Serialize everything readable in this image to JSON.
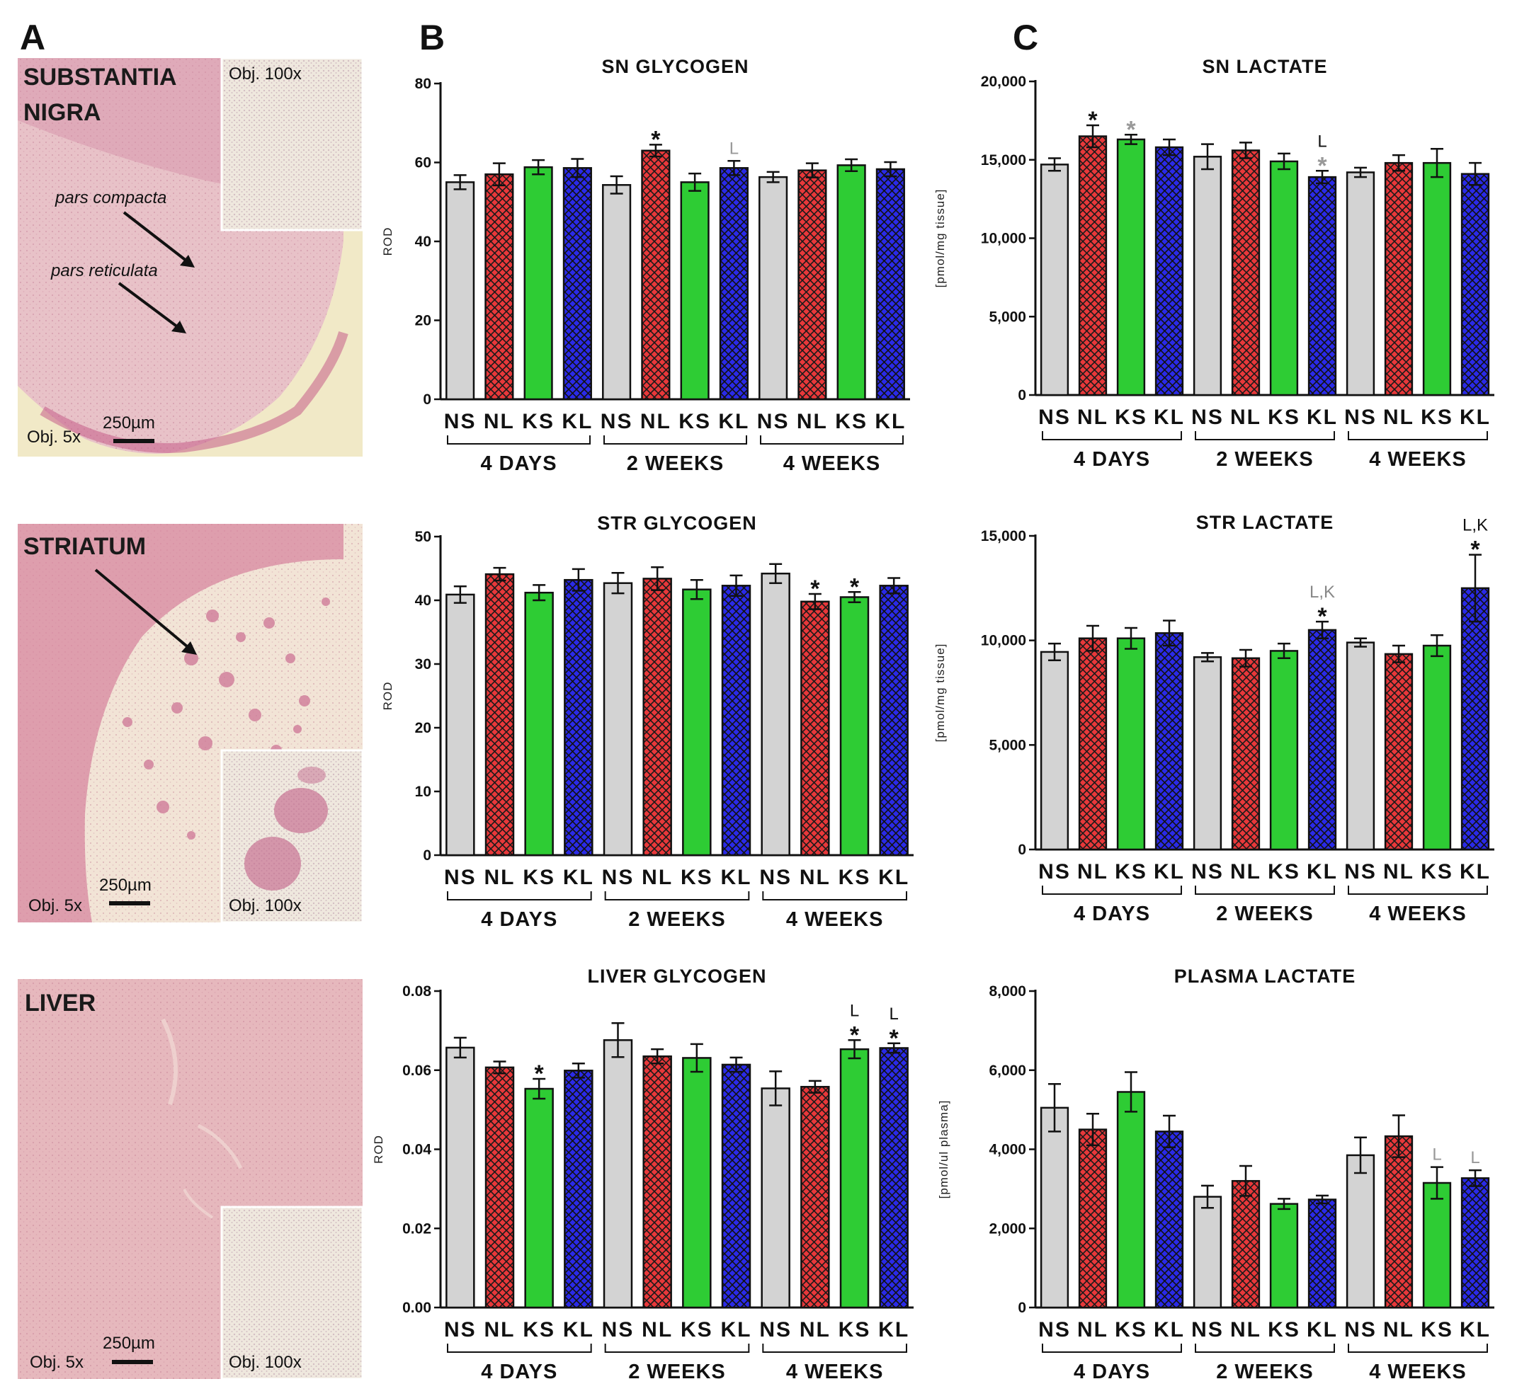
{
  "figure": {
    "panel_letters": [
      "A",
      "B",
      "C"
    ],
    "colors": {
      "NS": "#d3d3d3",
      "NL": "#e8383a",
      "KS": "#2ecc34",
      "KL": "#2a2ae8",
      "tissue_background": "#e9c3c7",
      "dark": "#111111",
      "grey_annotation": "#999999"
    },
    "micrographs": [
      {
        "title_lines": [
          "SUBSTANTIA",
          "NIGRA"
        ],
        "objective_main": "Obj. 5x",
        "objective_inset": "Obj. 100x",
        "scale_bar": "250µm",
        "annotations": [
          "pars compacta",
          "pars reticulata"
        ]
      },
      {
        "title_lines": [
          "STRIATUM"
        ],
        "objective_main": "Obj. 5x",
        "objective_inset": "Obj. 100x",
        "scale_bar": "250µm",
        "annotations": []
      },
      {
        "title_lines": [
          "LIVER"
        ],
        "objective_main": "Obj. 5x",
        "objective_inset": "Obj. 100x",
        "scale_bar": "250µm",
        "annotations": []
      }
    ]
  },
  "chart_data": [
    {
      "type": "bar",
      "title": "SN GLYCOGEN",
      "ylabel": "ROD",
      "ylim": [
        0,
        80
      ],
      "yticks": [
        "0",
        "20",
        "40",
        "60",
        "80"
      ],
      "categories": [
        "NS",
        "NL",
        "KS",
        "KL",
        "NS",
        "NL",
        "KS",
        "KL",
        "NS",
        "NL",
        "KS",
        "KL"
      ],
      "groups": [
        "4 DAYS",
        "2 WEEKS",
        "4 WEEKS"
      ],
      "values": [
        55,
        57,
        58.8,
        58.6,
        54.3,
        63,
        55,
        58.6,
        56.3,
        58,
        59.3,
        58.3
      ],
      "errors": [
        1.8,
        2.8,
        1.8,
        2.3,
        2.2,
        1.5,
        2.2,
        1.8,
        1.3,
        1.8,
        1.5,
        1.8
      ],
      "annotations": [
        {
          "bar": 5,
          "lines": [
            {
              "text": "*",
              "color": "#111111"
            }
          ]
        },
        {
          "bar": 7,
          "lines": [
            {
              "text": "L",
              "color": "#999999"
            }
          ]
        }
      ]
    },
    {
      "type": "bar",
      "title": "STR GLYCOGEN",
      "ylabel": "ROD",
      "ylim": [
        0,
        50
      ],
      "yticks": [
        "0",
        "10",
        "20",
        "30",
        "40",
        "50"
      ],
      "categories": [
        "NS",
        "NL",
        "KS",
        "KL",
        "NS",
        "NL",
        "KS",
        "KL",
        "NS",
        "NL",
        "KS",
        "KL"
      ],
      "groups": [
        "4 DAYS",
        "2 WEEKS",
        "4 WEEKS"
      ],
      "values": [
        40.9,
        44.1,
        41.2,
        43.2,
        42.7,
        43.4,
        41.7,
        42.3,
        44.2,
        39.8,
        40.5,
        42.3
      ],
      "errors": [
        1.3,
        1.0,
        1.2,
        1.7,
        1.6,
        1.8,
        1.5,
        1.6,
        1.5,
        1.2,
        0.8,
        1.2
      ],
      "annotations": [
        {
          "bar": 9,
          "lines": [
            {
              "text": "*",
              "color": "#111111"
            }
          ]
        },
        {
          "bar": 10,
          "lines": [
            {
              "text": "*",
              "color": "#111111"
            }
          ]
        }
      ]
    },
    {
      "type": "bar",
      "title": "LIVER GLYCOGEN",
      "ylabel": "ROD",
      "ylim": [
        0,
        0.08
      ],
      "yticks": [
        "0.00",
        "0.02",
        "0.04",
        "0.06",
        "0.08"
      ],
      "categories": [
        "NS",
        "NL",
        "KS",
        "KL",
        "NS",
        "NL",
        "KS",
        "KL",
        "NS",
        "NL",
        "KS",
        "KL"
      ],
      "groups": [
        "4 DAYS",
        "2 WEEKS",
        "4 WEEKS"
      ],
      "values": [
        0.0657,
        0.0607,
        0.0553,
        0.0599,
        0.0676,
        0.0635,
        0.0631,
        0.0614,
        0.0554,
        0.0558,
        0.0653,
        0.0656
      ],
      "errors": [
        0.0025,
        0.0015,
        0.0025,
        0.0018,
        0.0043,
        0.0018,
        0.0035,
        0.0018,
        0.0043,
        0.0015,
        0.0023,
        0.0012
      ],
      "annotations": [
        {
          "bar": 2,
          "lines": [
            {
              "text": "*",
              "color": "#111111"
            }
          ]
        },
        {
          "bar": 10,
          "lines": [
            {
              "text": "*",
              "color": "#111111"
            },
            {
              "text": "L",
              "color": "#111111"
            }
          ]
        },
        {
          "bar": 11,
          "lines": [
            {
              "text": "*",
              "color": "#111111"
            },
            {
              "text": "L",
              "color": "#111111"
            }
          ]
        }
      ]
    },
    {
      "type": "bar",
      "title": "SN LACTATE",
      "ylabel": "[pmol/mg tissue]",
      "ylim": [
        0,
        20000
      ],
      "yticks": [
        "0",
        "5,000",
        "10,000",
        "15,000",
        "20,000"
      ],
      "categories": [
        "NS",
        "NL",
        "KS",
        "KL",
        "NS",
        "NL",
        "KS",
        "KL",
        "NS",
        "NL",
        "KS",
        "KL"
      ],
      "groups": [
        "4 DAYS",
        "2 WEEKS",
        "4 WEEKS"
      ],
      "values": [
        14700,
        16500,
        16300,
        15800,
        15200,
        15600,
        14900,
        13900,
        14200,
        14800,
        14800,
        14100
      ],
      "errors": [
        400,
        700,
        300,
        500,
        800,
        500,
        500,
        400,
        300,
        500,
        900,
        700
      ],
      "annotations": [
        {
          "bar": 1,
          "lines": [
            {
              "text": "*",
              "color": "#111111"
            }
          ]
        },
        {
          "bar": 2,
          "lines": [
            {
              "text": "*",
              "color": "#999999"
            }
          ]
        },
        {
          "bar": 7,
          "lines": [
            {
              "text": "*",
              "color": "#999999"
            },
            {
              "text": "L",
              "color": "#111111"
            }
          ]
        }
      ]
    },
    {
      "type": "bar",
      "title": "STR LACTATE",
      "ylabel": "[pmol/mg tissue]",
      "ylim": [
        0,
        15000
      ],
      "yticks": [
        "0",
        "5,000",
        "10,000",
        "15,000"
      ],
      "categories": [
        "NS",
        "NL",
        "KS",
        "KL",
        "NS",
        "NL",
        "KS",
        "KL",
        "NS",
        "NL",
        "KS",
        "KL"
      ],
      "groups": [
        "4 DAYS",
        "2 WEEKS",
        "4 WEEKS"
      ],
      "values": [
        9450,
        10100,
        10100,
        10350,
        9200,
        9150,
        9500,
        10500,
        9900,
        9350,
        9750,
        12500
      ],
      "errors": [
        400,
        600,
        500,
        600,
        200,
        400,
        350,
        400,
        200,
        400,
        500,
        1600
      ],
      "annotations": [
        {
          "bar": 7,
          "lines": [
            {
              "text": "*",
              "color": "#111111"
            },
            {
              "text": "L,K",
              "color": "#888888"
            }
          ]
        },
        {
          "bar": 11,
          "lines": [
            {
              "text": "*",
              "color": "#111111"
            },
            {
              "text": "L,K",
              "color": "#111111"
            }
          ]
        }
      ]
    },
    {
      "type": "bar",
      "title": "PLASMA LACTATE",
      "ylabel": "[pmol/ul plasma]",
      "ylim": [
        0,
        8000
      ],
      "yticks": [
        "0",
        "2,000",
        "4,000",
        "6,000",
        "8,000"
      ],
      "categories": [
        "NS",
        "NL",
        "KS",
        "KL",
        "NS",
        "NL",
        "KS",
        "KL",
        "NS",
        "NL",
        "KS",
        "KL"
      ],
      "groups": [
        "4 DAYS",
        "2 WEEKS",
        "4 WEEKS"
      ],
      "values": [
        5050,
        4500,
        5450,
        4450,
        2800,
        3200,
        2620,
        2730,
        3850,
        4330,
        3150,
        3270
      ],
      "errors": [
        600,
        400,
        500,
        400,
        280,
        380,
        130,
        100,
        450,
        530,
        400,
        200
      ],
      "annotations": [
        {
          "bar": 10,
          "lines": [
            {
              "text": "L",
              "color": "#999999"
            }
          ]
        },
        {
          "bar": 11,
          "lines": [
            {
              "text": "L",
              "color": "#999999"
            }
          ]
        }
      ]
    }
  ]
}
